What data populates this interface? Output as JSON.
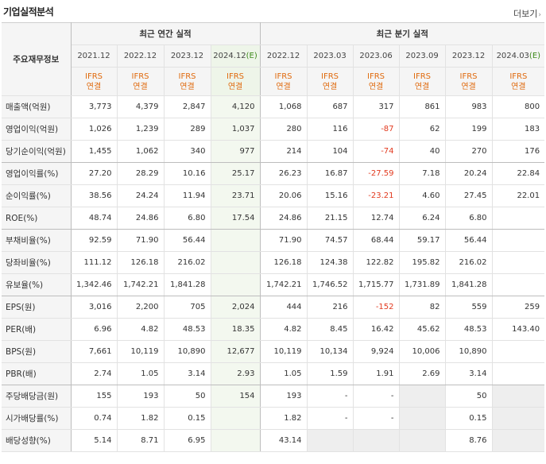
{
  "section": {
    "title": "기업실적분석",
    "more_label": "더보기"
  },
  "table": {
    "corner_label": "주요재무정보",
    "annual_group": "최근 연간 실적",
    "quarter_group": "최근 분기 실적",
    "annual_periods": [
      "2021.12",
      "2022.12",
      "2023.12",
      "2024.12"
    ],
    "annual_estimate_suffix": "(E)",
    "quarter_periods": [
      "2022.12",
      "2023.03",
      "2023.06",
      "2023.09",
      "2023.12",
      "2024.03"
    ],
    "quarter_estimate_suffix": "(E)",
    "ifrs_line1": "IFRS",
    "ifrs_line2": "연결",
    "rows": [
      {
        "label": "매출액(억원)",
        "values": [
          "3,773",
          "4,379",
          "2,847",
          "4,120",
          "1,068",
          "687",
          "317",
          "861",
          "983",
          "800"
        ]
      },
      {
        "label": "영업이익(억원)",
        "values": [
          "1,026",
          "1,239",
          "289",
          "1,037",
          "280",
          "116",
          "-87",
          "62",
          "199",
          "183"
        ]
      },
      {
        "label": "당기순이익(억원)",
        "values": [
          "1,455",
          "1,062",
          "340",
          "977",
          "214",
          "104",
          "-74",
          "40",
          "270",
          "176"
        ]
      },
      {
        "label": "영업이익률(%)",
        "values": [
          "27.20",
          "28.29",
          "10.16",
          "25.17",
          "26.23",
          "16.87",
          "-27.59",
          "7.18",
          "20.24",
          "22.84"
        ]
      },
      {
        "label": "순이익률(%)",
        "values": [
          "38.56",
          "24.24",
          "11.94",
          "23.71",
          "20.06",
          "15.16",
          "-23.21",
          "4.60",
          "27.45",
          "22.01"
        ]
      },
      {
        "label": "ROE(%)",
        "values": [
          "48.74",
          "24.86",
          "6.80",
          "17.54",
          "24.86",
          "21.15",
          "12.74",
          "6.24",
          "6.80",
          ""
        ]
      },
      {
        "label": "부채비율(%)",
        "values": [
          "92.59",
          "71.90",
          "56.44",
          "",
          "71.90",
          "74.57",
          "68.44",
          "59.17",
          "56.44",
          ""
        ]
      },
      {
        "label": "당좌비율(%)",
        "values": [
          "111.12",
          "126.18",
          "216.02",
          "",
          "126.18",
          "124.38",
          "122.82",
          "195.82",
          "216.02",
          ""
        ]
      },
      {
        "label": "유보율(%)",
        "values": [
          "1,342.46",
          "1,742.21",
          "1,841.28",
          "",
          "1,742.21",
          "1,746.52",
          "1,715.77",
          "1,731.89",
          "1,841.28",
          ""
        ]
      },
      {
        "label": "EPS(원)",
        "values": [
          "3,016",
          "2,200",
          "705",
          "2,024",
          "444",
          "216",
          "-152",
          "82",
          "559",
          "259"
        ]
      },
      {
        "label": "PER(배)",
        "values": [
          "6.96",
          "4.82",
          "48.53",
          "18.35",
          "4.82",
          "8.45",
          "16.42",
          "45.62",
          "48.53",
          "143.40"
        ]
      },
      {
        "label": "BPS(원)",
        "values": [
          "7,661",
          "10,119",
          "10,890",
          "12,677",
          "10,119",
          "10,134",
          "9,924",
          "10,006",
          "10,890",
          ""
        ]
      },
      {
        "label": "PBR(배)",
        "values": [
          "2.74",
          "1.05",
          "3.14",
          "2.93",
          "1.05",
          "1.59",
          "1.91",
          "2.69",
          "3.14",
          ""
        ]
      },
      {
        "label": "주당배당금(원)",
        "values": [
          "155",
          "193",
          "50",
          "154",
          "193",
          "-",
          "-",
          "",
          "50",
          ""
        ]
      },
      {
        "label": "시가배당률(%)",
        "values": [
          "0.74",
          "1.82",
          "0.15",
          "",
          "1.82",
          "-",
          "-",
          "",
          "0.15",
          ""
        ]
      },
      {
        "label": "배당성향(%)",
        "values": [
          "5.14",
          "8.71",
          "6.95",
          "",
          "43.14",
          "",
          "",
          "",
          "8.76",
          ""
        ]
      }
    ]
  }
}
